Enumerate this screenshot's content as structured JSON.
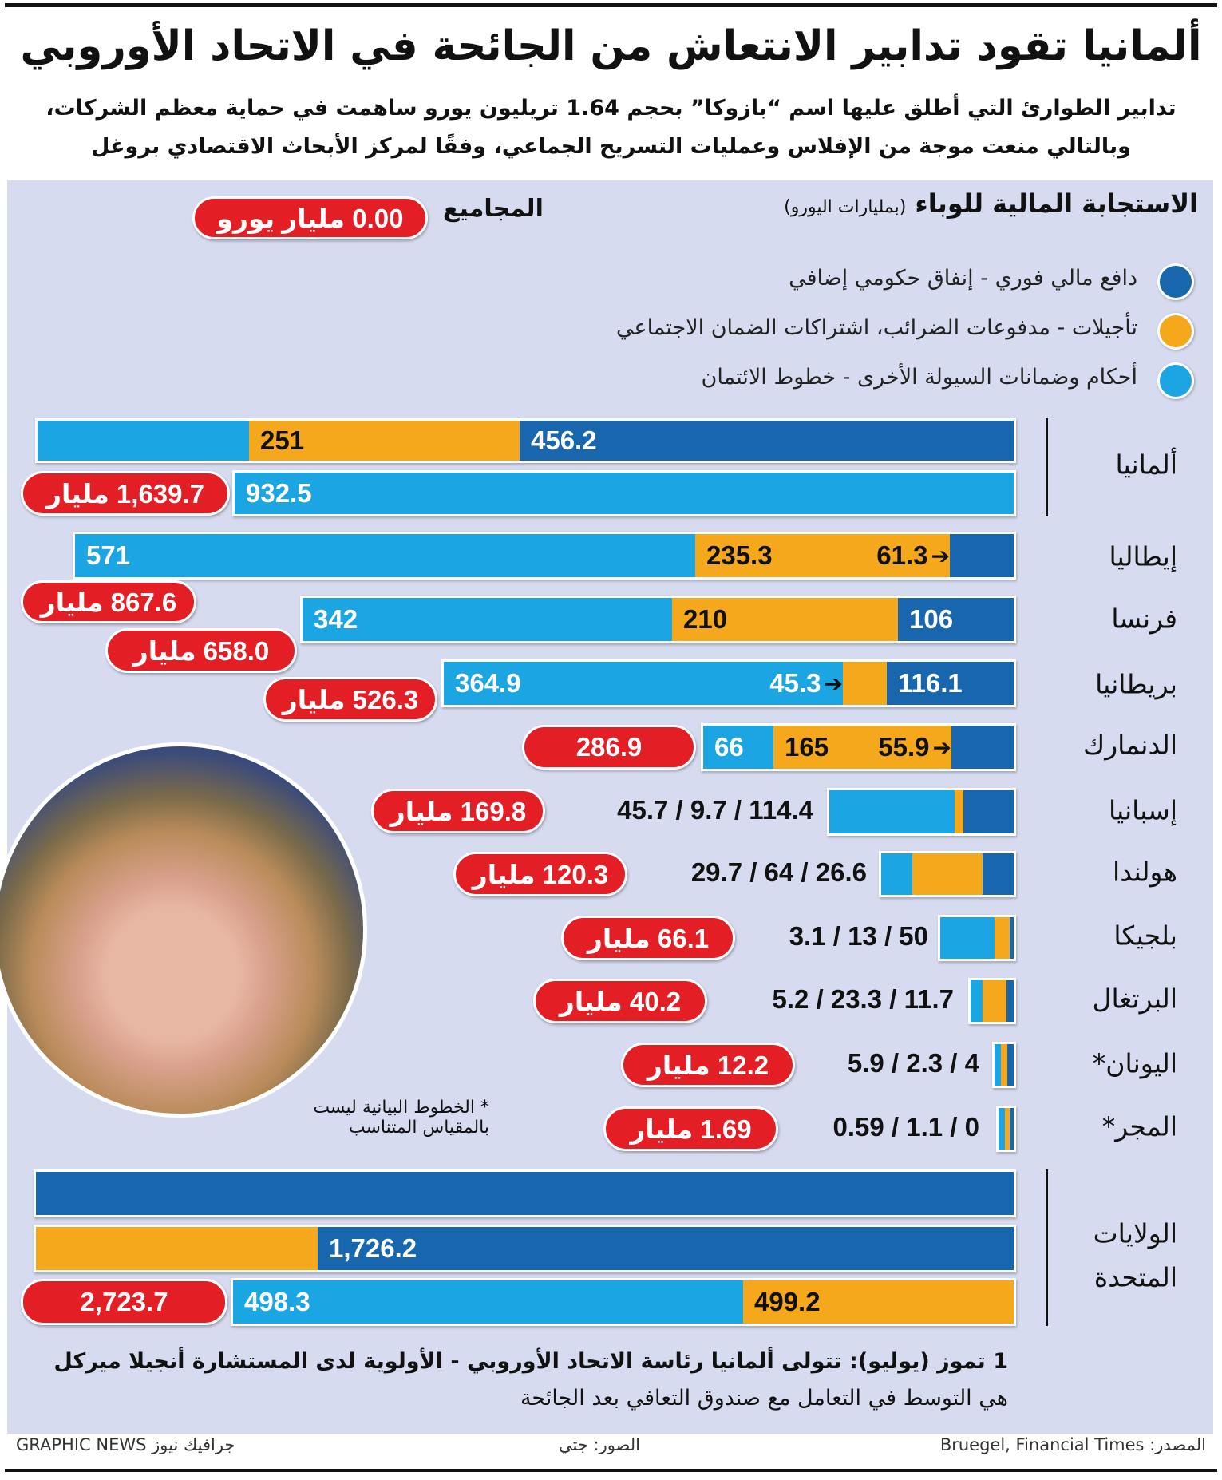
{
  "title": "ألمانيا تقود تدابير الانتعاش من الجائحة في الاتحاد الأوروبي",
  "subtitle": [
    "تدابير الطوارئ التي أطلق عليها اسم “بازوكا” بحجم 1.64 تريليون يورو ساهمت في حماية معظم الشركات،",
    "وبالتالي منعت موجة من الإفلاس وعمليات التسريح الجماعي، وفقًا لمركز الأبحاث الاقتصادي بروغل"
  ],
  "chart_data": {
    "type": "bar",
    "title": "الاستجابة المالية للوباء",
    "unit": "(بمليارات اليورو)",
    "totals_label": "المجاميع",
    "totals_legend": "0.00 مليار يورو",
    "legend": [
      {
        "name": "دافع مالي فوري - إنفاق حكومي إضافي",
        "color": "#1766ae"
      },
      {
        "name": "تأجيلات - مدفوعات الضرائب، اشتراكات الضمان الاجتماعي",
        "color": "#f5a81c"
      },
      {
        "name": "أحكام وضمانات السيولة الأخرى - خطوط الائتمان",
        "color": "#1ba5e3"
      }
    ],
    "countries": [
      {
        "name": "ألمانيا",
        "fiscal": "456.2",
        "deferral": "251",
        "liquidity": "932.5",
        "total": "1,639.7 مليار"
      },
      {
        "name": "إيطاليا",
        "fiscal": "61.3",
        "deferral": "235.3",
        "liquidity": "571",
        "total": "867.6 مليار"
      },
      {
        "name": "فرنسا",
        "fiscal": "106",
        "deferral": "210",
        "liquidity": "342",
        "total": "658.0 مليار"
      },
      {
        "name": "بريطانيا",
        "fiscal": "116.1",
        "deferral": "45.3",
        "liquidity": "364.9",
        "total": "526.3 مليار"
      },
      {
        "name": "الدنمارك",
        "fiscal": "55.9",
        "deferral": "165",
        "liquidity": "66",
        "total": "286.9"
      },
      {
        "name": "إسبانيا",
        "values_text": "45.7 / 9.7 / 114.4",
        "total": "169.8 مليار"
      },
      {
        "name": "هولندا",
        "values_text": "29.7 / 64 / 26.6",
        "total": "120.3 مليار"
      },
      {
        "name": "بلجيكا",
        "values_text": "3.1 / 13 / 50",
        "total": "66.1 مليار"
      },
      {
        "name": "البرتغال",
        "values_text": "5.2 / 23.3 / 11.7",
        "total": "40.2 مليار"
      },
      {
        "name": "اليونان*",
        "values_text": "5.9 / 2.3 / 4",
        "total": "12.2 مليار"
      },
      {
        "name": "المجر*",
        "values_text": "0.59 / 1.1 / 0",
        "total": "1.69 مليار"
      },
      {
        "name": [
          "الولايات",
          "المتحدة"
        ],
        "fiscal": "1,726.2",
        "deferral": "499.2",
        "liquidity": "498.3",
        "total": "2,723.7"
      }
    ],
    "footnote": [
      "* الخطوط البيانية ليست",
      "بالمقياس المتناسب"
    ]
  },
  "note": [
    "1 تموز (يوليو): تتولى ألمانيا رئاسة الاتحاد الأوروبي - الأولوية لدى المستشارة أنجيلا ميركل",
    "هي التوسط في التعامل مع صندوق التعافي بعد الجائحة"
  ],
  "footer": {
    "source": "المصدر: Bruegel, Financial Times",
    "photos": "الصور: جتي",
    "brand": "GRAPHIC NEWS جرافيك نيوز"
  }
}
